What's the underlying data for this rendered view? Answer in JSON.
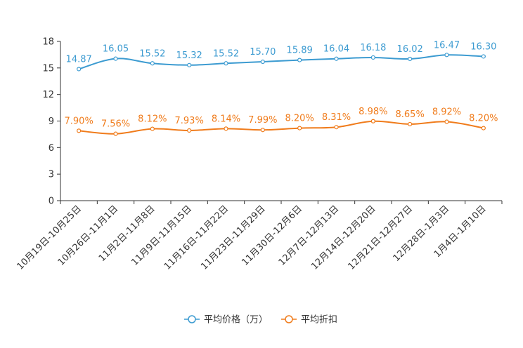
{
  "chart_data": {
    "type": "line",
    "title": "",
    "xlabel": "",
    "ylabel": "",
    "ylim": [
      0,
      18
    ],
    "yticks": [
      0,
      3,
      6,
      9,
      12,
      15,
      18
    ],
    "grid": false,
    "legend_position": "bottom",
    "categories": [
      "10月19日-10月25日",
      "10月26日-11月1日",
      "11月2日-11月8日",
      "11月9日-11月15日",
      "11月16日-11月22日",
      "11月23日-11月29日",
      "11月30日-12月6日",
      "12月7日-12月13日",
      "12月14日-12月20日",
      "12月21日-12月27日",
      "12月28日-1月3日",
      "1月4日-1月10日"
    ],
    "series": [
      {
        "name": "平均价格（万）",
        "color": "#3c9bd1",
        "values": [
          14.87,
          16.05,
          15.52,
          15.32,
          15.52,
          15.7,
          15.89,
          16.04,
          16.18,
          16.02,
          16.47,
          16.3
        ],
        "labels": [
          "14.87",
          "16.05",
          "15.52",
          "15.32",
          "15.52",
          "15.70",
          "15.89",
          "16.04",
          "16.18",
          "16.02",
          "16.47",
          "16.30"
        ]
      },
      {
        "name": "平均折扣",
        "color": "#f07c1c",
        "values": [
          7.9,
          7.56,
          8.12,
          7.93,
          8.14,
          7.99,
          8.2,
          8.31,
          8.98,
          8.65,
          8.92,
          8.2
        ],
        "labels": [
          "7.90%",
          "7.56%",
          "8.12%",
          "7.93%",
          "8.14%",
          "7.99%",
          "8.20%",
          "8.31%",
          "8.98%",
          "8.65%",
          "8.92%",
          "8.20%"
        ]
      }
    ]
  }
}
